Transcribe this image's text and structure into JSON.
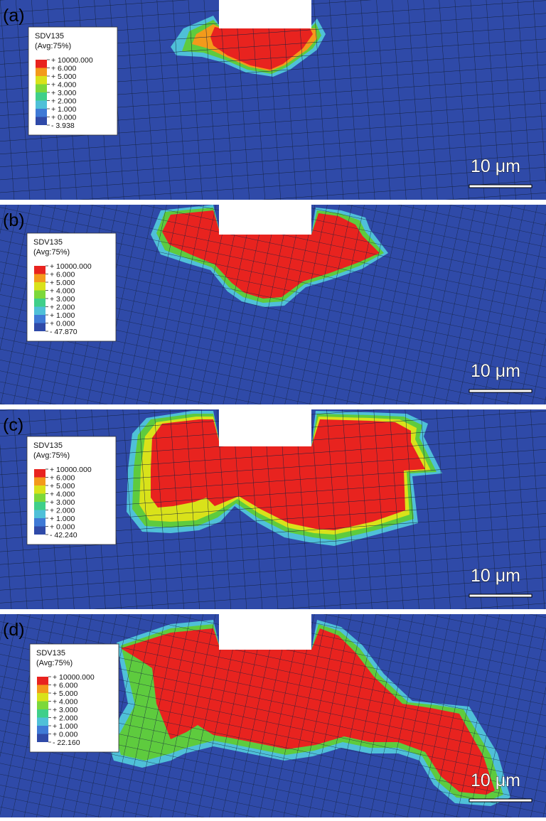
{
  "figure": {
    "panels": [
      {
        "label": "(a)",
        "legend": {
          "title": "SDV135",
          "subtitle": "(Avg:75%)",
          "levels": [
            "+ 10000.000",
            "+ 6.000",
            "+ 5.000",
            "+ 4.000",
            "+ 3.000",
            "+ 2.000",
            "+ 1.000",
            "+ 0.000",
            "- 3.938"
          ]
        },
        "scalebar": "10 μm"
      },
      {
        "label": "(b)",
        "legend": {
          "title": "SDV135",
          "subtitle": "(Avg:75%)",
          "levels": [
            "+ 10000.000",
            "+ 6.000",
            "+ 5.000",
            "+ 4.000",
            "+ 3.000",
            "+ 2.000",
            "+ 1.000",
            "+ 0.000",
            "- 47.870"
          ]
        },
        "scalebar": "10 μm"
      },
      {
        "label": "(c)",
        "legend": {
          "title": "SDV135",
          "subtitle": "(Avg:75%)",
          "levels": [
            "+ 10000.000",
            "+ 6.000",
            "+ 5.000",
            "+ 4.000",
            "+ 3.000",
            "+ 2.000",
            "+ 1.000",
            "+ 0.000",
            "- 42.240"
          ]
        },
        "scalebar": "10 μm"
      },
      {
        "label": "(d)",
        "legend": {
          "title": "SDV135",
          "subtitle": "(Avg:75%)",
          "levels": [
            "+ 10000.000",
            "+ 6.000",
            "+ 5.000",
            "+ 4.000",
            "+ 3.000",
            "+ 2.000",
            "+ 1.000",
            "+ 0.000",
            "- 22.160"
          ]
        },
        "scalebar": "10 μm"
      }
    ],
    "colors": {
      "background": "#2f4aa8",
      "mesh": "#14213d",
      "red": "#e8231f",
      "orange": "#f39a1b",
      "yellow": "#d9e21a",
      "green": "#5ecb3e",
      "cyan": "#4fc0d8",
      "lightblue": "#3f8fd6",
      "blue": "#2f4aa8",
      "separator": "#ffffff"
    },
    "legend_colors": [
      "#e8231f",
      "#f39a1b",
      "#d9e21a",
      "#7cd83a",
      "#3fcf8a",
      "#4fc0d8",
      "#3f7ad6",
      "#2f4aa8"
    ]
  }
}
